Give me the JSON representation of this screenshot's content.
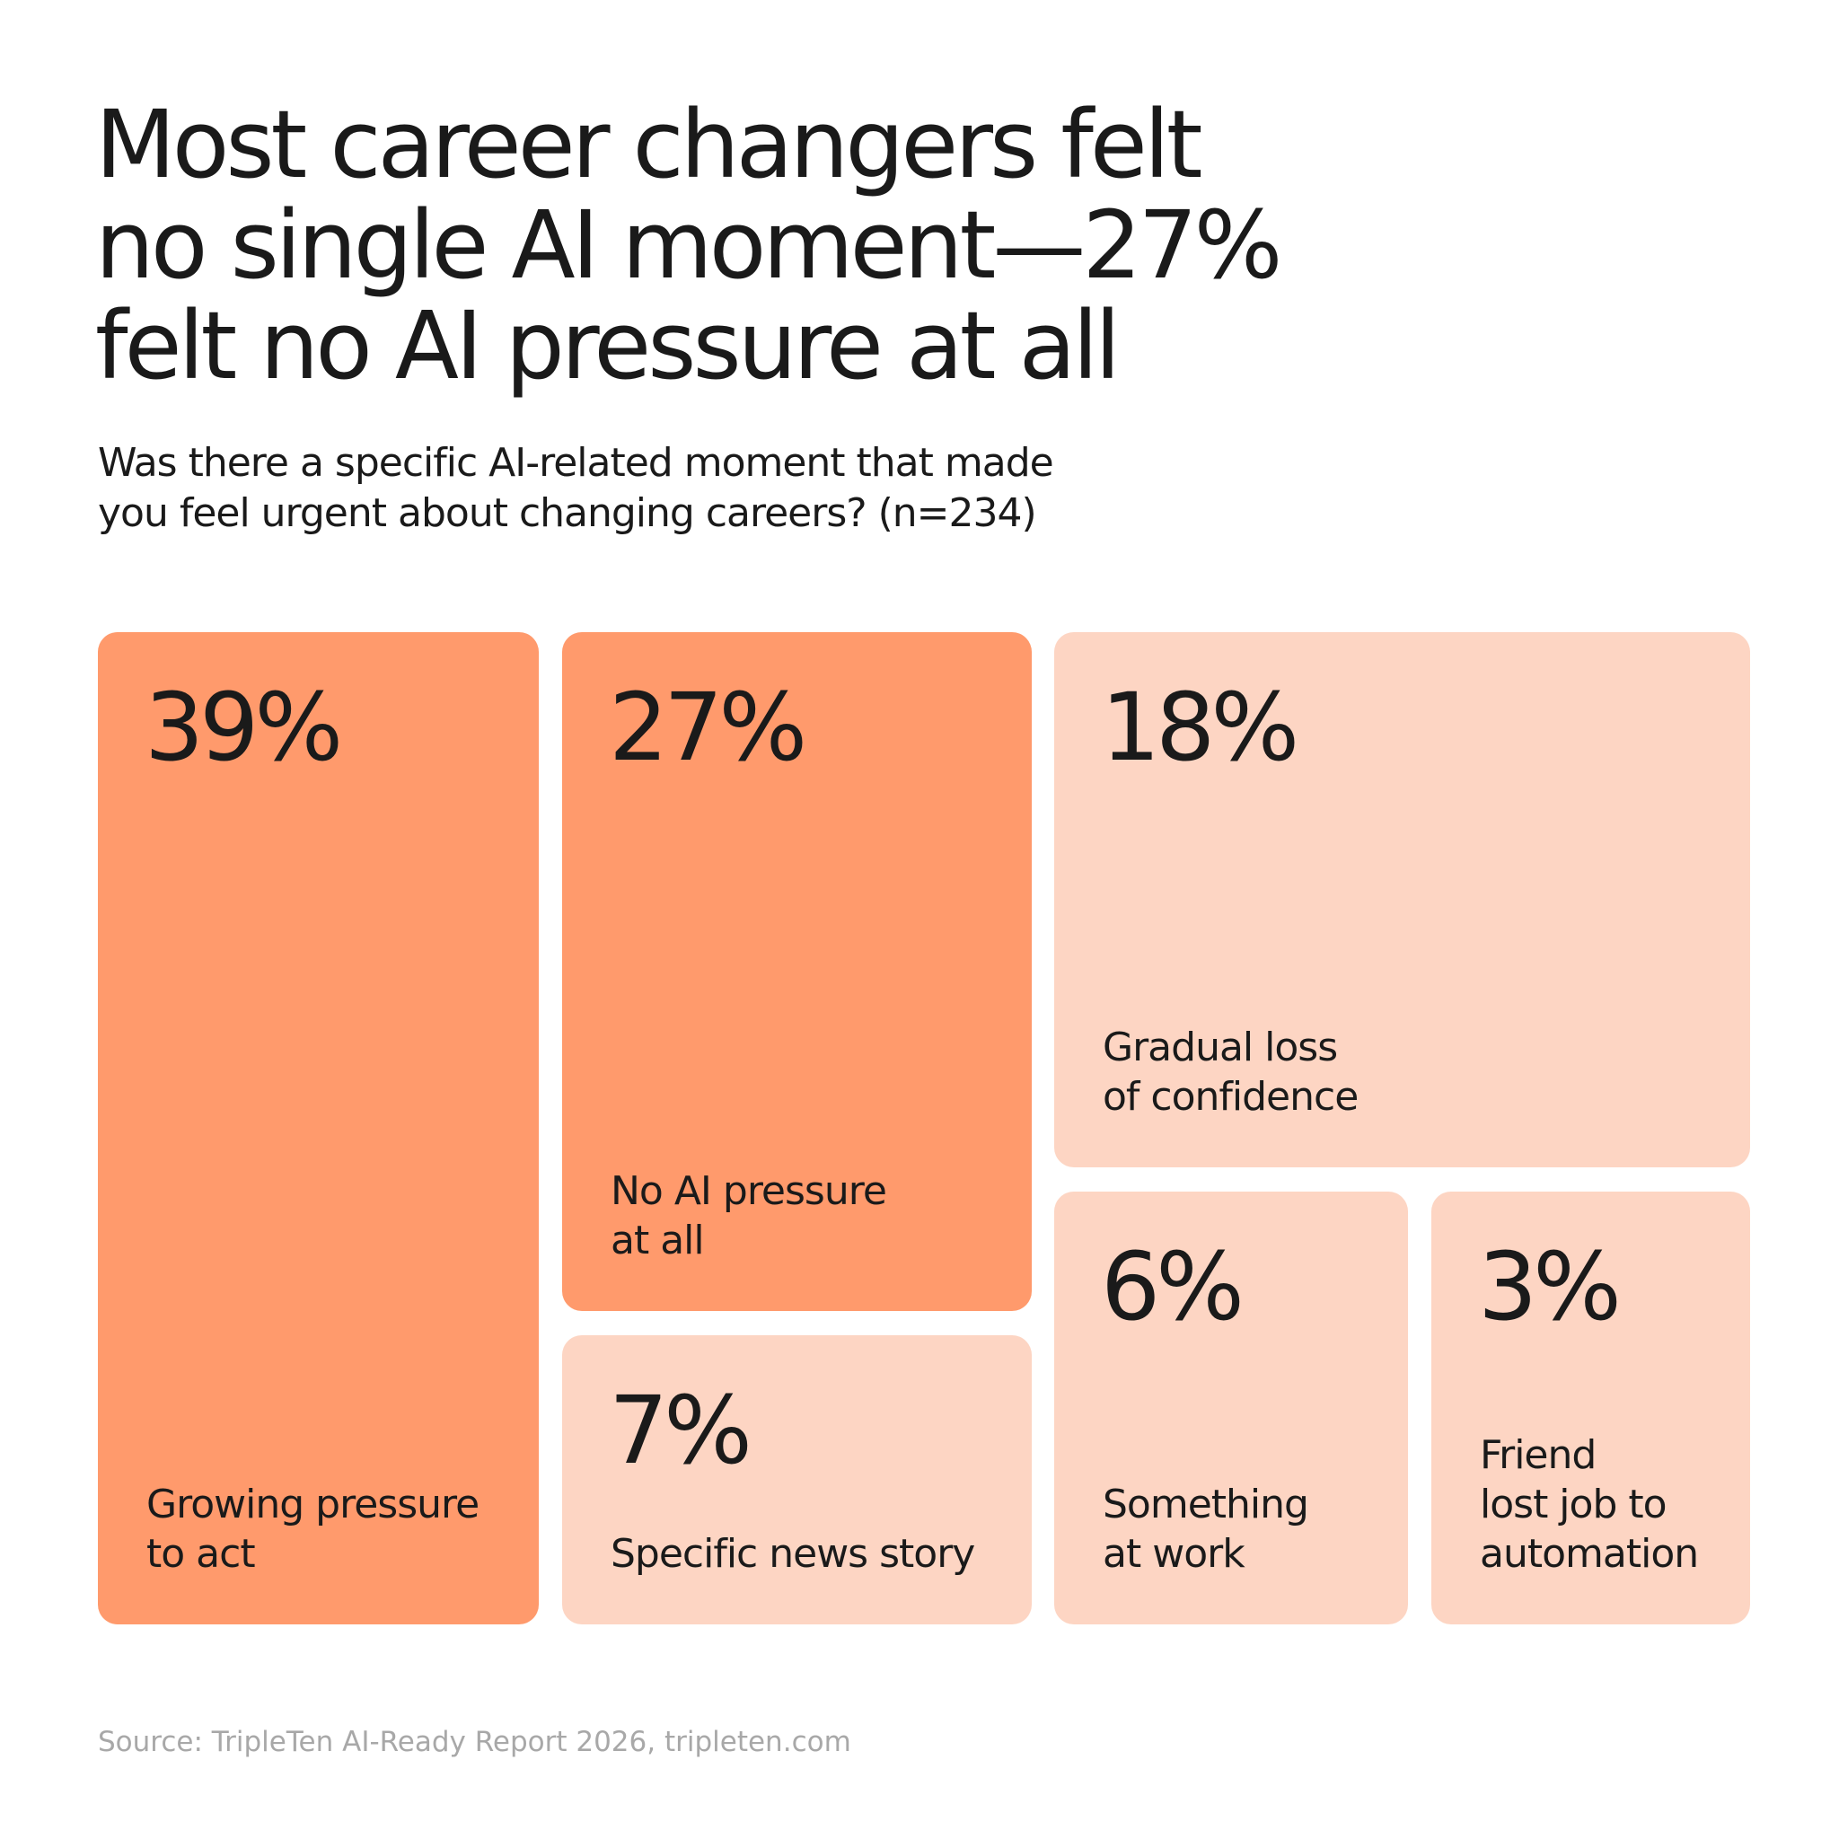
{
  "chart_data": {
    "type": "treemap",
    "title": "Most career changers felt\nno single AI moment—27%\nfelt no AI pressure at all",
    "subtitle": "Was there a specific AI-related moment that made\nyou feel urgent about changing careers? (n=234)",
    "categories": [
      "Growing pressure\nto act",
      "No AI pressure\nat all",
      "Specific news story",
      "Gradual loss\nof confidence",
      "Something\nat work",
      "Friend\nlost job to\nautomation"
    ],
    "values": [
      39,
      27,
      7,
      18,
      6,
      3
    ],
    "value_labels": [
      "39%",
      "27%",
      "7%",
      "18%",
      "6%",
      "3%"
    ],
    "colors": [
      "#ff9a6c",
      "#ff9a6c",
      "#fdd5c3",
      "#fdd5c3",
      "#fdd5c3",
      "#fdd5c3"
    ],
    "source": "Source: TripleTen AI-Ready Report 2026, tripleten.com"
  }
}
